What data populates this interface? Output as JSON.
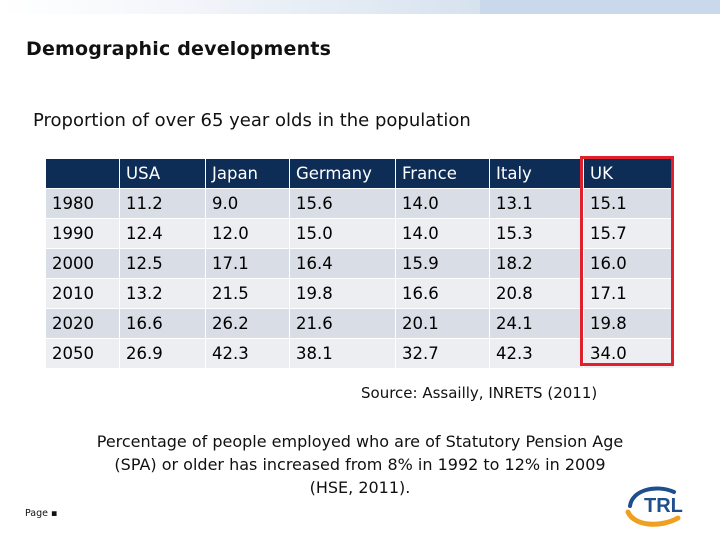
{
  "slide": {
    "title": "Demographic developments",
    "subtitle": "Proportion of over 65 year olds in the population",
    "source": "Source: Assailly, INRETS (2011)",
    "note_line1": "Percentage  of people employed who are of Statutory Pension Age",
    "note_line2": "(SPA) or older has increased from 8% in 1992 to 12% in 2009",
    "note_line3": "(HSE, 2011).",
    "footer": "Page ▪",
    "logo_text": "TRL",
    "highlight_color": "#e0202a",
    "header_color": "#0d2d57"
  },
  "table": {
    "columns": [
      "",
      "USA",
      "Japan",
      "Germany",
      "France",
      "Italy",
      "UK"
    ],
    "rows": [
      {
        "year": "1980",
        "usa": "11.2",
        "japan": "9.0",
        "germany": "15.6",
        "france": "14.0",
        "italy": "13.1",
        "uk": "15.1"
      },
      {
        "year": "1990",
        "usa": "12.4",
        "japan": "12.0",
        "germany": "15.0",
        "france": "14.0",
        "italy": "15.3",
        "uk": "15.7"
      },
      {
        "year": "2000",
        "usa": "12.5",
        "japan": "17.1",
        "germany": "16.4",
        "france": "15.9",
        "italy": "18.2",
        "uk": "16.0"
      },
      {
        "year": "2010",
        "usa": "13.2",
        "japan": "21.5",
        "germany": "19.8",
        "france": "16.6",
        "italy": "20.8",
        "uk": "17.1"
      },
      {
        "year": "2020",
        "usa": "16.6",
        "japan": "26.2",
        "germany": "21.6",
        "france": "20.1",
        "italy": "24.1",
        "uk": "19.8"
      },
      {
        "year": "2050",
        "usa": "26.9",
        "japan": "42.3",
        "germany": "38.1",
        "france": "32.7",
        "italy": "42.3",
        "uk": "34.0"
      }
    ]
  }
}
